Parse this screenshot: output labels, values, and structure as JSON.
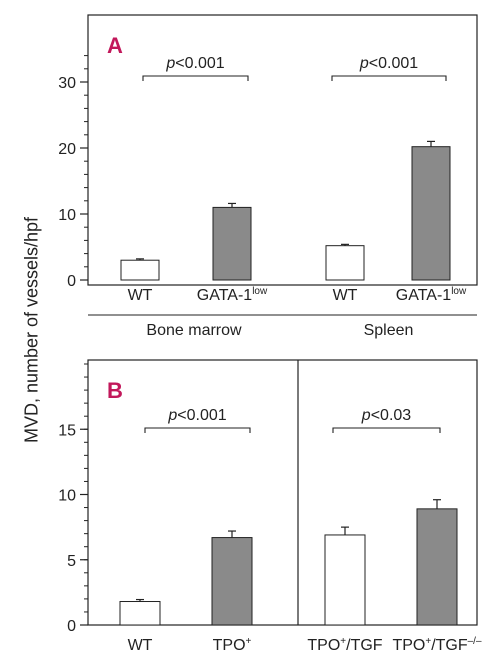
{
  "figure": {
    "ylabel": "MVD, number of vessels/hpf"
  },
  "chart_data": [
    {
      "type": "bar",
      "panel_label": "A",
      "ylim": [
        0,
        35
      ],
      "yticks": [
        0,
        10,
        20,
        30
      ],
      "categories": [
        "WT",
        "GATA-1",
        "WT",
        "GATA-1"
      ],
      "category_superscripts": [
        "",
        "low",
        "",
        "low"
      ],
      "values": [
        3,
        11,
        5.2,
        20.2
      ],
      "errors": [
        0.2,
        0.6,
        0.2,
        0.8
      ],
      "bar_fill": [
        "#ffffff",
        "#8a8a8a",
        "#ffffff",
        "#8a8a8a"
      ],
      "groups": [
        {
          "label": "Bone marrow",
          "bars": [
            0,
            1
          ]
        },
        {
          "label": "Spleen",
          "bars": [
            2,
            3
          ]
        }
      ],
      "significance": [
        {
          "pair": [
            0,
            1
          ],
          "text_italic": "p",
          "text": "<0.001"
        },
        {
          "pair": [
            2,
            3
          ],
          "text_italic": "p",
          "text": "<0.001"
        }
      ]
    },
    {
      "type": "bar",
      "panel_label": "B",
      "ylim": [
        0,
        20
      ],
      "yticks": [
        0,
        5,
        10,
        15
      ],
      "categories": [
        "WT",
        "TPO",
        "TPO",
        "TPO"
      ],
      "category_superscripts": [
        "",
        "+",
        "+",
        "+"
      ],
      "category_suffix": [
        "",
        "",
        "/TGF",
        "/TGF"
      ],
      "category_suffix_superscripts": [
        "",
        "",
        "",
        "–/–"
      ],
      "values": [
        1.8,
        6.7,
        6.9,
        8.9
      ],
      "errors": [
        0.15,
        0.5,
        0.6,
        0.7
      ],
      "bar_fill": [
        "#ffffff",
        "#8a8a8a",
        "#ffffff",
        "#8a8a8a"
      ],
      "significance": [
        {
          "pair": [
            0,
            1
          ],
          "text_italic": "p",
          "text": "<0.001"
        },
        {
          "pair": [
            2,
            3
          ],
          "text_italic": "p",
          "text": "<0.03"
        }
      ]
    }
  ],
  "colors": {
    "panel_label": "#c2185b",
    "axis": "#222222",
    "filled_bar": "#8a8a8a"
  }
}
